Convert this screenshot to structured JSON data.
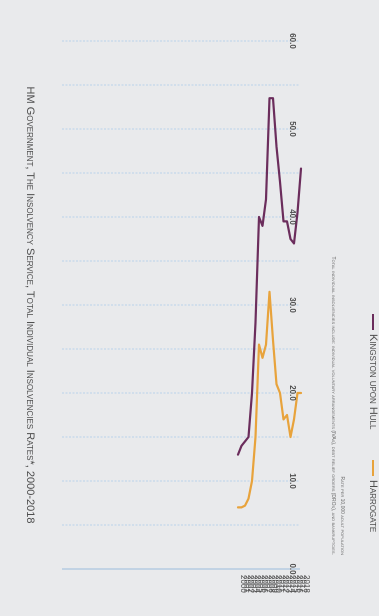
{
  "chart_data": {
    "type": "line",
    "title": "HM Government, The Insolvency Service, Total Individual Insolvencies Rates*, 2000-2018",
    "footnote": "Total individual insolvencies include: individual voluntary arrangements (IVAs), debt relief orders (DROs), and bankruptcies.",
    "ylabel": "Rate per 10,000 adult population",
    "x": [
      "2000",
      "2001",
      "2002",
      "2003",
      "2004",
      "2005",
      "2006",
      "2007",
      "2008",
      "2009",
      "2010",
      "2011",
      "2012",
      "2013",
      "2014",
      "2015",
      "2016",
      "2017",
      "2018"
    ],
    "ylim": [
      0,
      60
    ],
    "yticks": [
      "0.0",
      "10.0",
      "20.0",
      "30.0",
      "40.0",
      "50.0",
      "60.0"
    ],
    "grid": true,
    "legend_position": "bottom",
    "series": [
      {
        "name": "Kingston upon Hull",
        "color": "#6b2d5c",
        "values": [
          13.0,
          14.0,
          14.5,
          15.0,
          20.0,
          28.0,
          40.0,
          39.0,
          42.0,
          53.5,
          53.5,
          48.0,
          44.0,
          39.5,
          39.5,
          37.5,
          37.0,
          40.5,
          45.5
        ]
      },
      {
        "name": "Harrogate",
        "color": "#e8a33c",
        "values": [
          7.0,
          7.0,
          7.2,
          8.0,
          10.0,
          15.0,
          25.5,
          24.0,
          25.5,
          31.5,
          26.0,
          21.0,
          20.0,
          17.0,
          17.5,
          15.0,
          17.0,
          20.0,
          20.0
        ]
      }
    ]
  }
}
